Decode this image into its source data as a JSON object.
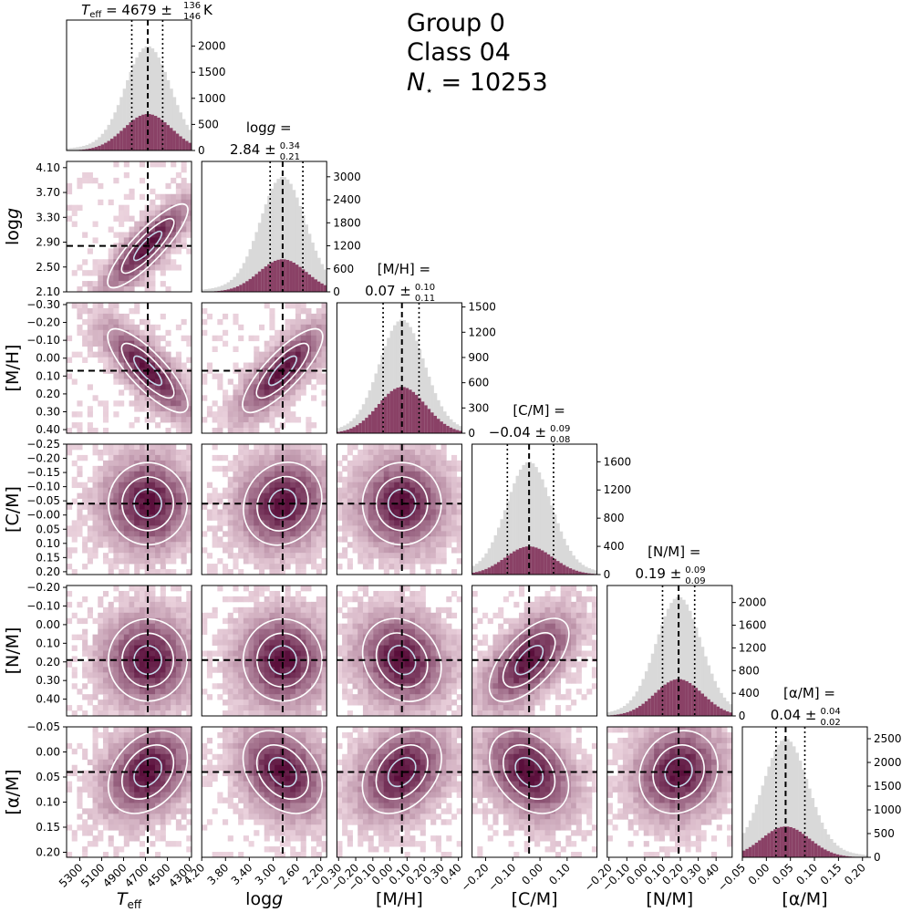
{
  "header": {
    "group_label": "Group 0",
    "class_label": "Class 04",
    "n_label": "10253"
  },
  "colors": {
    "hist_all": "#d9d9d9",
    "hist_class": "#8a4166",
    "density_low": "#f3dde6",
    "density_high": "#5a0f3b",
    "contour_outer": "#ffffff",
    "contour_inner": "#c6d9ea"
  },
  "chart_data": {
    "type": "corner",
    "params": [
      {
        "key": "teff",
        "axis_label": "T_eff",
        "median": 4679,
        "err_plus": 136,
        "err_minus": 146,
        "unit": "K",
        "range": [
          5420,
          4280
        ],
        "ticks": [
          5300,
          5100,
          4900,
          4700,
          4500,
          4300
        ],
        "tick_labels": [
          "5300",
          "5100",
          "4900",
          "4700",
          "4500",
          "4300"
        ],
        "title_value": "4679",
        "title_plus": "136",
        "title_minus": "146",
        "hist_ticks": [
          0,
          500,
          1000,
          1500,
          2000
        ],
        "hist_tick_labels": [
          "0",
          "500",
          "1000",
          "1500",
          "2000"
        ],
        "hist_max": 2500,
        "peak_all": 2000,
        "peak_class": 700
      },
      {
        "key": "logg",
        "axis_label": "log g",
        "median": 2.84,
        "err_plus": 0.34,
        "err_minus": 0.21,
        "unit": "",
        "range": [
          4.2,
          2.1
        ],
        "ticks": [
          4.2,
          3.8,
          3.4,
          3.0,
          2.6,
          2.2
        ],
        "tick_labels": [
          "4.20",
          "3.80",
          "3.40",
          "3.00",
          "2.60",
          "2.20"
        ],
        "y_ticks": [
          2.1,
          2.5,
          2.9,
          3.3,
          3.7,
          4.1
        ],
        "y_tick_labels": [
          "2.10",
          "2.50",
          "2.90",
          "3.30",
          "3.70",
          "4.10"
        ],
        "title_value": "2.84",
        "title_plus": "0.34",
        "title_minus": "0.21",
        "hist_ticks": [
          0,
          600,
          1200,
          1800,
          2400,
          3000
        ],
        "hist_tick_labels": [
          "0",
          "600",
          "1200",
          "1800",
          "2400",
          "3000"
        ],
        "hist_max": 3400,
        "peak_all": 3000,
        "peak_class": 850
      },
      {
        "key": "mh",
        "axis_label": "[M/H]",
        "median": 0.07,
        "err_plus": 0.1,
        "err_minus": 0.11,
        "unit": "",
        "range": [
          -0.31,
          0.42
        ],
        "ticks": [
          -0.3,
          -0.2,
          -0.1,
          0.0,
          0.1,
          0.2,
          0.3,
          0.4
        ],
        "tick_labels": [
          "-0.30",
          "-0.20",
          "-0.10",
          "0.00",
          "0.10",
          "0.20",
          "0.30",
          "0.40"
        ],
        "title_value": "0.07",
        "title_plus": "0.10",
        "title_minus": "0.11",
        "hist_ticks": [
          0,
          300,
          600,
          900,
          1200,
          1500
        ],
        "hist_tick_labels": [
          "0",
          "300",
          "600",
          "900",
          "1200",
          "1500"
        ],
        "hist_max": 1550,
        "peak_all": 1350,
        "peak_class": 550
      },
      {
        "key": "cm",
        "axis_label": "[C/M]",
        "median": -0.04,
        "err_plus": 0.09,
        "err_minus": 0.08,
        "unit": "",
        "range": [
          -0.25,
          0.21
        ],
        "ticks": [
          -0.25,
          -0.2,
          -0.15,
          -0.1,
          -0.05,
          0.0,
          0.05,
          0.1,
          0.15,
          0.2
        ],
        "tick_labels": [
          "-0.25",
          "-0.20",
          "-0.15",
          "-0.10",
          "-0.05",
          "-0.00",
          "0.05",
          "0.10",
          "0.15",
          "0.20"
        ],
        "x_ticks": [
          -0.2,
          -0.1,
          0.0,
          0.1
        ],
        "x_tick_labels": [
          "-0.20",
          "-0.10",
          "0.00",
          "0.10"
        ],
        "title_value": "−0.04",
        "title_plus": "0.09",
        "title_minus": "0.08",
        "hist_ticks": [
          0,
          400,
          800,
          1200,
          1600
        ],
        "hist_tick_labels": [
          "0",
          "400",
          "800",
          "1200",
          "1600"
        ],
        "hist_max": 1850,
        "peak_all": 1600,
        "peak_class": 400
      },
      {
        "key": "nm",
        "axis_label": "[N/M]",
        "median": 0.19,
        "err_plus": 0.09,
        "err_minus": 0.09,
        "unit": "",
        "range": [
          -0.21,
          0.49
        ],
        "ticks": [
          -0.2,
          -0.1,
          0.0,
          0.1,
          0.2,
          0.3,
          0.4
        ],
        "tick_labels": [
          "-0.20",
          "-0.10",
          "0.00",
          "0.10",
          "0.20",
          "0.30",
          "0.40"
        ],
        "title_value": "0.19",
        "title_plus": "0.09",
        "title_minus": "0.09",
        "hist_ticks": [
          0,
          400,
          800,
          1200,
          1600,
          2000
        ],
        "hist_tick_labels": [
          "0",
          "400",
          "800",
          "1200",
          "1600",
          "2000"
        ],
        "hist_max": 2300,
        "peak_all": 2100,
        "peak_class": 650
      },
      {
        "key": "am",
        "axis_label": "[α/M]",
        "median": 0.04,
        "err_plus": 0.04,
        "err_minus": 0.02,
        "unit": "",
        "range": [
          -0.05,
          0.21
        ],
        "ticks": [
          -0.05,
          0.0,
          0.05,
          0.1,
          0.15,
          0.2
        ],
        "tick_labels": [
          "-0.05",
          "0.00",
          "0.05",
          "0.10",
          "0.15",
          "0.20"
        ],
        "title_value": "0.04",
        "title_plus": "0.04",
        "title_minus": "0.02",
        "hist_ticks": [
          0,
          500,
          1000,
          1500,
          2000,
          2500
        ],
        "hist_tick_labels": [
          "0",
          "500",
          "1000",
          "1500",
          "2000",
          "2500"
        ],
        "hist_max": 2750,
        "peak_all": 2500,
        "peak_class": 650
      }
    ],
    "correlations": {
      "1,0": -0.85,
      "2,0": -0.8,
      "2,1": 0.8,
      "3,0": 0.0,
      "3,1": 0.1,
      "3,2": 0.0,
      "4,0": 0.0,
      "4,1": 0.0,
      "4,2": 0.15,
      "4,3": -0.6,
      "5,0": 0.3,
      "5,1": -0.3,
      "5,2": -0.3,
      "5,3": 0.3,
      "5,4": -0.1
    }
  }
}
